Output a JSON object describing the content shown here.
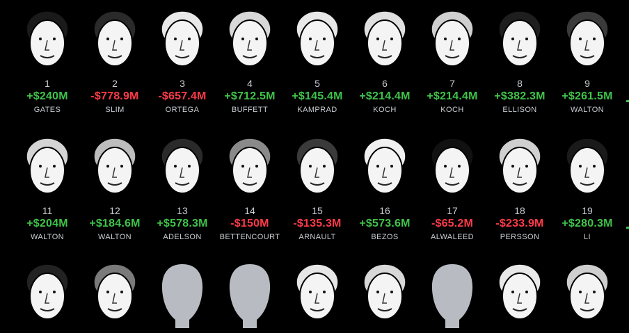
{
  "colors": {
    "background": "#000000",
    "positive": "#3fc34a",
    "negative": "#ff3b47",
    "label": "#c9cdd2",
    "placeholder": "#b8bcc2"
  },
  "rows": [
    {
      "people": [
        {
          "rank": "1",
          "change": "+$240M",
          "name": "GATES",
          "sign": "pos",
          "hair": "#1a1a1a"
        },
        {
          "rank": "2",
          "change": "-$778.9M",
          "name": "SLIM",
          "sign": "neg",
          "hair": "#2a2a2a"
        },
        {
          "rank": "3",
          "change": "-$657.4M",
          "name": "ORTEGA",
          "sign": "neg",
          "hair": "#e8e8e8"
        },
        {
          "rank": "4",
          "change": "+$712.5M",
          "name": "BUFFETT",
          "sign": "pos",
          "hair": "#d8d8d8"
        },
        {
          "rank": "5",
          "change": "+$145.4M",
          "name": "KAMPRAD",
          "sign": "pos",
          "hair": "#e8e8e8"
        },
        {
          "rank": "6",
          "change": "+$214.4M",
          "name": "KOCH",
          "sign": "pos",
          "hair": "#e0e0e0"
        },
        {
          "rank": "7",
          "change": "+$214.4M",
          "name": "KOCH",
          "sign": "pos",
          "hair": "#cfcfcf"
        },
        {
          "rank": "8",
          "change": "+$382.3M",
          "name": "ELLISON",
          "sign": "pos",
          "hair": "#1e1e1e"
        },
        {
          "rank": "9",
          "change": "+$261.5M",
          "name": "WALTON",
          "sign": "pos",
          "hair": "#3a3a3a"
        }
      ]
    },
    {
      "people": [
        {
          "rank": "11",
          "change": "+$204M",
          "name": "WALTON",
          "sign": "pos",
          "hair": "#d4d4d4"
        },
        {
          "rank": "12",
          "change": "+$184.6M",
          "name": "WALTON",
          "sign": "pos",
          "hair": "#bdbdbd"
        },
        {
          "rank": "13",
          "change": "+$578.3M",
          "name": "ADELSON",
          "sign": "pos",
          "hair": "#2a2a2a"
        },
        {
          "rank": "14",
          "change": "-$150M",
          "name": "BETTENCOURT",
          "sign": "neg",
          "hair": "#8a8a8a"
        },
        {
          "rank": "15",
          "change": "-$135.3M",
          "name": "ARNAULT",
          "sign": "neg",
          "hair": "#3a3a3a"
        },
        {
          "rank": "16",
          "change": "+$573.6M",
          "name": "BEZOS",
          "sign": "pos",
          "hair": "#f0f0f0"
        },
        {
          "rank": "17",
          "change": "-$65.2M",
          "name": "ALWALEED",
          "sign": "neg",
          "hair": "#111111"
        },
        {
          "rank": "18",
          "change": "-$233.9M",
          "name": "PERSSON",
          "sign": "neg",
          "hair": "#d0d0d0"
        },
        {
          "rank": "19",
          "change": "+$280.3M",
          "name": "LI",
          "sign": "pos",
          "hair": "#1a1a1a"
        }
      ]
    },
    {
      "people": [
        {
          "rank": "",
          "change": "",
          "name": "",
          "sign": "pos",
          "hair": "#222222"
        },
        {
          "rank": "",
          "change": "",
          "name": "",
          "sign": "pos",
          "hair": "#7a7a7a"
        },
        {
          "rank": "",
          "change": "",
          "name": "",
          "sign": "pos",
          "hair": "silhouette"
        },
        {
          "rank": "",
          "change": "",
          "name": "",
          "sign": "pos",
          "hair": "silhouette"
        },
        {
          "rank": "",
          "change": "",
          "name": "",
          "sign": "pos",
          "hair": "#e6e6e6"
        },
        {
          "rank": "",
          "change": "",
          "name": "",
          "sign": "pos",
          "hair": "#d8d8d8"
        },
        {
          "rank": "",
          "change": "",
          "name": "",
          "sign": "pos",
          "hair": "silhouette"
        },
        {
          "rank": "",
          "change": "",
          "name": "",
          "sign": "pos",
          "hair": "#e8e8e8"
        },
        {
          "rank": "",
          "change": "",
          "name": "",
          "sign": "pos",
          "hair": "#cfcfcf"
        }
      ]
    }
  ]
}
